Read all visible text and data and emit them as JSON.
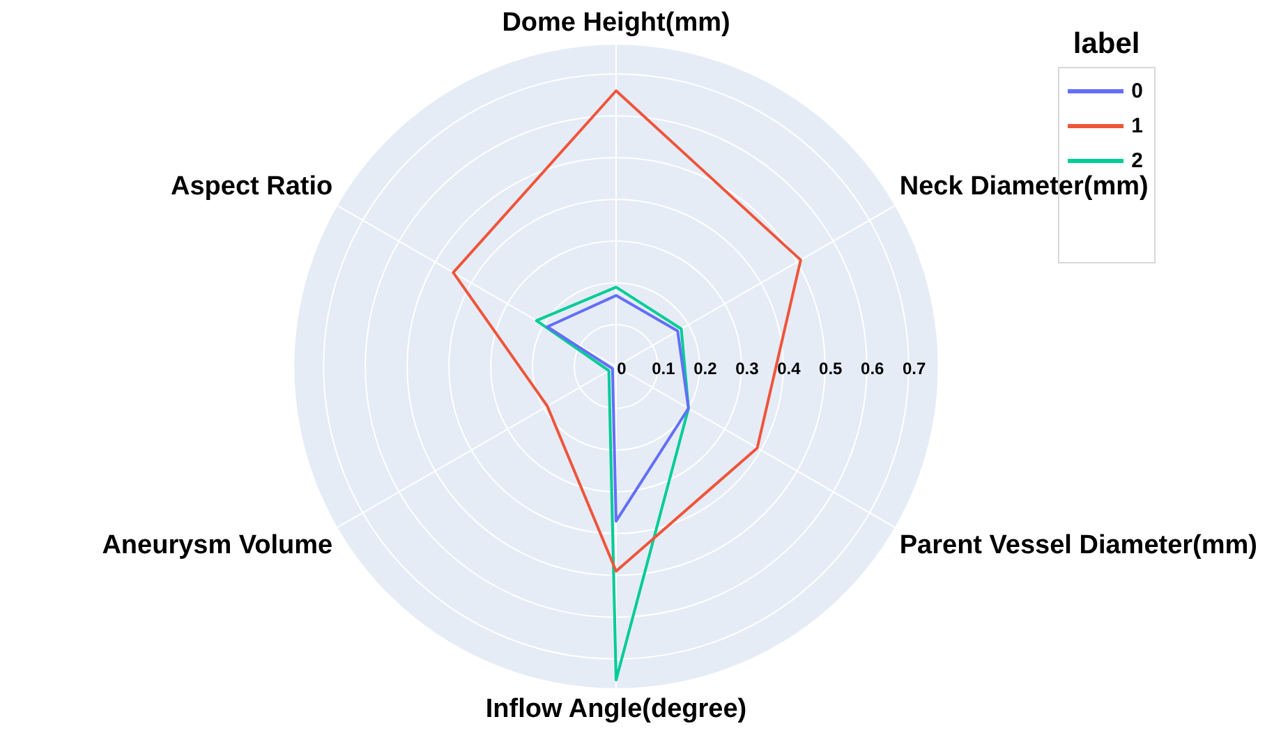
{
  "chart_data": {
    "type": "radar",
    "legend_title": "label",
    "legend": "top right",
    "marker": "none",
    "grid": true,
    "categories": [
      "Dome Height(mm)",
      "Neck Diameter(mm)",
      "Parent Vessel Diameter(mm)",
      "Inflow Angle(degree)",
      "Aneurysm Volume",
      "Aspect Ratio"
    ],
    "series": [
      {
        "name": "0",
        "color": "#636efa",
        "values": [
          0.17,
          0.17,
          0.2,
          0.37,
          0.01,
          0.19
        ]
      },
      {
        "name": "1",
        "color": "#ef553b",
        "values": [
          0.66,
          0.51,
          0.39,
          0.49,
          0.19,
          0.45
        ]
      },
      {
        "name": "2",
        "color": "#00cc96",
        "values": [
          0.19,
          0.18,
          0.2,
          0.75,
          0.02,
          0.22
        ]
      }
    ],
    "ylim": [
      0,
      0.77
    ],
    "yticks": [
      0,
      0.1,
      0.2,
      0.3,
      0.4,
      0.5,
      0.6,
      0.7
    ]
  }
}
